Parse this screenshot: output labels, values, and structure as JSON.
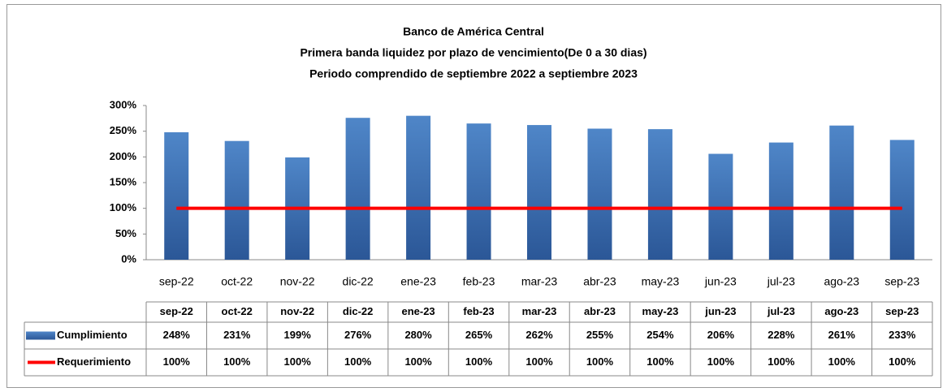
{
  "chart_data": {
    "type": "bar",
    "title": "Banco de América Central",
    "subtitle": [
      "Primera banda liquidez por plazo de vencimiento(De 0 a 30 dias)",
      "Periodo comprendido de septiembre 2022 a septiembre 2023"
    ],
    "categories": [
      "sep-22",
      "oct-22",
      "nov-22",
      "dic-22",
      "ene-23",
      "feb-23",
      "mar-23",
      "abr-23",
      "may-23",
      "jun-23",
      "jul-23",
      "ago-23",
      "sep-23"
    ],
    "series": [
      {
        "name": "Cumplimiento",
        "type": "bar",
        "color": "#3f70b3",
        "values": [
          248,
          231,
          199,
          276,
          280,
          265,
          262,
          255,
          254,
          206,
          228,
          261,
          233
        ],
        "value_labels": [
          "248%",
          "231%",
          "199%",
          "276%",
          "280%",
          "265%",
          "262%",
          "255%",
          "254%",
          "206%",
          "228%",
          "261%",
          "233%"
        ]
      },
      {
        "name": "Requerimiento",
        "type": "line",
        "color": "#ff0000",
        "values": [
          100,
          100,
          100,
          100,
          100,
          100,
          100,
          100,
          100,
          100,
          100,
          100,
          100
        ],
        "value_labels": [
          "100%",
          "100%",
          "100%",
          "100%",
          "100%",
          "100%",
          "100%",
          "100%",
          "100%",
          "100%",
          "100%",
          "100%",
          "100%"
        ]
      }
    ],
    "ylim": [
      0,
      300
    ],
    "yticks": [
      {
        "value": 0,
        "label": "0%"
      },
      {
        "value": 50,
        "label": "50%"
      },
      {
        "value": 100,
        "label": "100%"
      },
      {
        "value": 150,
        "label": "150%"
      },
      {
        "value": 200,
        "label": "200%"
      },
      {
        "value": 250,
        "label": "250%"
      },
      {
        "value": 300,
        "label": "300%"
      }
    ],
    "grid": false
  }
}
